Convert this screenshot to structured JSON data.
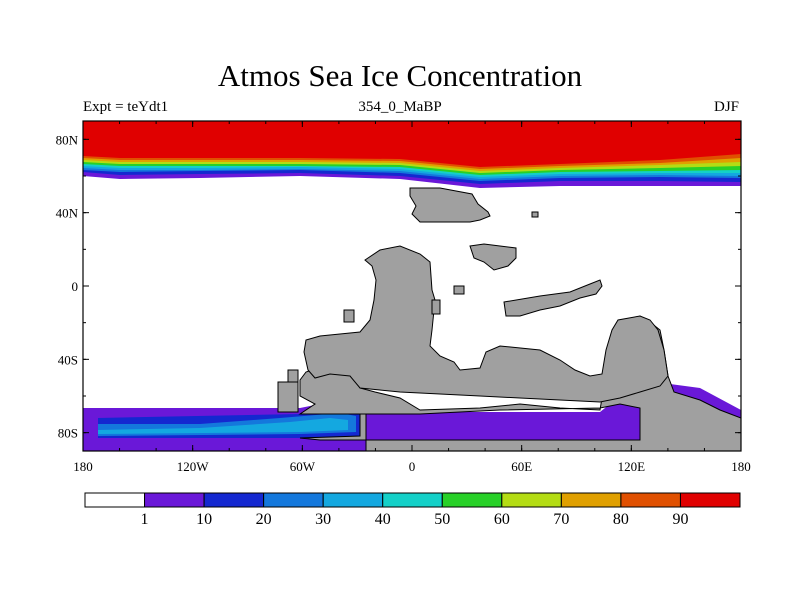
{
  "title": "Atmos Sea Ice Concentration",
  "left_string": "Expt = teYdt1",
  "center_string": "354_0_MaBP",
  "right_string": "DJF",
  "axes": {
    "x_ticks": [
      "180",
      "120W",
      "60W",
      "0",
      "60E",
      "120E",
      "180"
    ],
    "y_ticks": [
      "80N",
      "40N",
      "0",
      "40S",
      "80S"
    ]
  },
  "colorbar": {
    "labels": [
      "1",
      "10",
      "20",
      "30",
      "40",
      "50",
      "60",
      "70",
      "80",
      "90"
    ],
    "colors": [
      "#ffffff",
      "#6a18d8",
      "#1428d0",
      "#1478dc",
      "#14a8e0",
      "#14d0c8",
      "#28d028",
      "#b4dc14",
      "#e0a000",
      "#e05000",
      "#e00000"
    ]
  },
  "colors": {
    "ice_full": "#e00000",
    "land": "#a0a0a0",
    "ocean": "#ffffff"
  }
}
